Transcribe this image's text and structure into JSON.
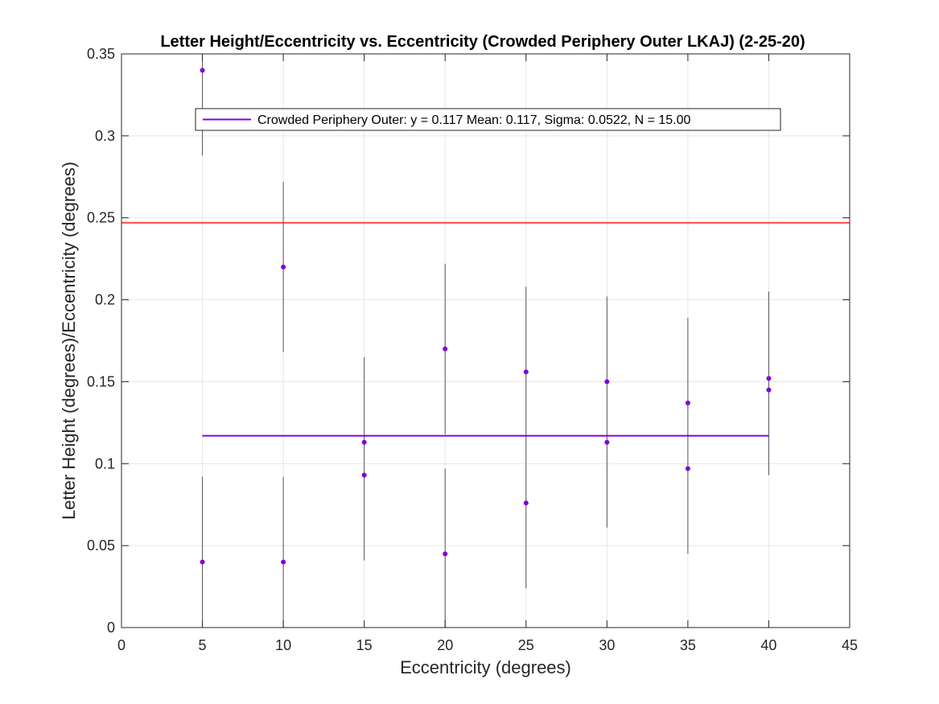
{
  "chart_data": {
    "type": "scatter",
    "title": "Letter Height/Eccentricity vs. Eccentricity (Crowded Periphery Outer LKAJ) (2-25-20)",
    "xlabel": "Eccentricity (degrees)",
    "ylabel": "Letter Height (degrees)/Eccentricity (degrees)",
    "xlim": [
      0,
      45
    ],
    "ylim": [
      0,
      0.35
    ],
    "xticks": [
      "0",
      "5",
      "10",
      "15",
      "20",
      "25",
      "30",
      "35",
      "40",
      "45"
    ],
    "xtick_values": [
      0,
      5,
      10,
      15,
      20,
      25,
      30,
      35,
      40,
      45
    ],
    "yticks": [
      "0",
      "0.05",
      "0.1",
      "0.15",
      "0.2",
      "0.25",
      "0.3",
      "0.35"
    ],
    "ytick_values": [
      0,
      0.05,
      0.1,
      0.15,
      0.2,
      0.25,
      0.3,
      0.35
    ],
    "grid": true,
    "legend_position": "top",
    "series": [
      {
        "name": "Crowded Periphery Outer: y = 0.117 Mean: 0.117, Sigma: 0.0522, N = 15.00",
        "color": "#8000e0",
        "points": [
          {
            "x": 5,
            "y": 0.34
          },
          {
            "x": 5,
            "y": 0.04
          },
          {
            "x": 10,
            "y": 0.22
          },
          {
            "x": 10,
            "y": 0.04
          },
          {
            "x": 15,
            "y": 0.113
          },
          {
            "x": 15,
            "y": 0.093
          },
          {
            "x": 20,
            "y": 0.17
          },
          {
            "x": 20,
            "y": 0.045
          },
          {
            "x": 25,
            "y": 0.156
          },
          {
            "x": 25,
            "y": 0.076
          },
          {
            "x": 30,
            "y": 0.15
          },
          {
            "x": 30,
            "y": 0.113
          },
          {
            "x": 35,
            "y": 0.137
          },
          {
            "x": 35,
            "y": 0.097
          },
          {
            "x": 40,
            "y": 0.152
          },
          {
            "x": 40,
            "y": 0.145
          }
        ],
        "error_bars": [
          {
            "x": 5,
            "low": 0,
            "high": 0.092
          },
          {
            "x": 5,
            "low": 0.288,
            "high": 0.35
          },
          {
            "x": 10,
            "low": 0.168,
            "high": 0.272
          },
          {
            "x": 10,
            "low": 0,
            "high": 0.092
          },
          {
            "x": 15,
            "low": 0.041,
            "high": 0.165
          },
          {
            "x": 20,
            "low": 0.118,
            "high": 0.222
          },
          {
            "x": 20,
            "low": 0,
            "high": 0.097
          },
          {
            "x": 25,
            "low": 0.024,
            "high": 0.208
          },
          {
            "x": 30,
            "low": 0.061,
            "high": 0.202
          },
          {
            "x": 35,
            "low": 0.045,
            "high": 0.189
          },
          {
            "x": 40,
            "low": 0.093,
            "high": 0.205
          }
        ],
        "mean_line": {
          "y": 0.117,
          "x_start": 5,
          "x_end": 40
        }
      }
    ],
    "reference_lines": [
      {
        "y": 0.247,
        "color": "#ff4d4d"
      }
    ],
    "colors": {
      "error_bar": "#555555",
      "grid": "#e6e6e6",
      "axis": "#262626"
    }
  }
}
